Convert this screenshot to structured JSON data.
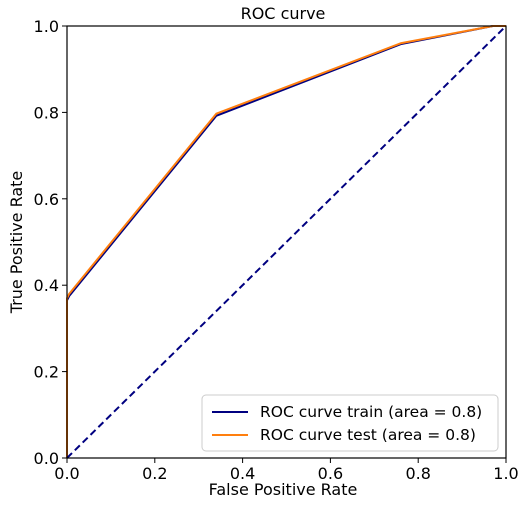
{
  "chart_data": {
    "type": "line",
    "title": "ROC curve",
    "xlabel": "False Positive Rate",
    "ylabel": "True Positive Rate",
    "xlim": [
      0.0,
      1.0
    ],
    "ylim": [
      0.0,
      1.0
    ],
    "xticks": [
      "0.0",
      "0.2",
      "0.4",
      "0.6",
      "0.8",
      "1.0"
    ],
    "yticks": [
      "0.0",
      "0.2",
      "0.4",
      "0.6",
      "0.8",
      "1.0"
    ],
    "grid": false,
    "legend_position": "lower-right",
    "series": [
      {
        "name": "ROC curve train (area = 0.8)",
        "color": "#000080",
        "style": "solid",
        "x": [
          0.0,
          0.0,
          0.005,
          0.34,
          0.76,
          0.97,
          1.0
        ],
        "y": [
          0.0,
          0.365,
          0.375,
          0.792,
          0.958,
          1.0,
          1.0
        ]
      },
      {
        "name": "ROC curve test (area = 0.8)",
        "color": "#ff7f0e",
        "style": "solid",
        "x": [
          0.0,
          0.0,
          0.005,
          0.34,
          0.76,
          0.97,
          1.0
        ],
        "y": [
          0.0,
          0.37,
          0.38,
          0.797,
          0.96,
          1.0,
          1.0
        ]
      },
      {
        "name": "",
        "color": "#000080",
        "style": "dashed",
        "x": [
          0.0,
          1.0
        ],
        "y": [
          0.0,
          1.0
        ]
      }
    ]
  }
}
